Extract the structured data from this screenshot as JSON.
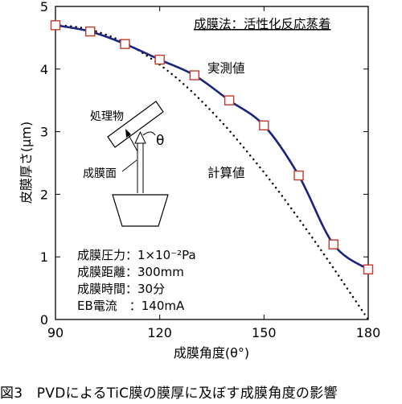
{
  "chart_data": {
    "type": "line",
    "xlabel": "成膜角度(θ°)",
    "ylabel": "皮膜厚さ(μm)",
    "xlim": [
      90,
      180
    ],
    "ylim": [
      0,
      5
    ],
    "xticks": [
      "90",
      "120",
      "150",
      "180"
    ],
    "yticks": [
      "0",
      "1",
      "2",
      "3",
      "4",
      "5"
    ],
    "grid": false,
    "series": [
      {
        "name": "実測値",
        "style": "solid line with square markers",
        "color": "#1a237e",
        "x": [
          90,
          100,
          110,
          120,
          130,
          140,
          150,
          160,
          170,
          180
        ],
        "y": [
          4.7,
          4.6,
          4.4,
          4.15,
          3.9,
          3.5,
          3.1,
          2.3,
          1.2,
          0.8
        ]
      },
      {
        "name": "計算値",
        "style": "dotted line",
        "color": "#000000",
        "x": [
          90,
          95,
          100,
          105,
          110,
          115,
          120,
          125,
          130,
          135,
          140,
          145,
          150,
          155,
          160,
          165,
          170,
          175,
          180
        ],
        "y": [
          4.7,
          4.68,
          4.63,
          4.54,
          4.42,
          4.26,
          4.07,
          3.85,
          3.6,
          3.32,
          3.02,
          2.69,
          2.35,
          1.99,
          1.61,
          1.22,
          0.82,
          0.41,
          0.0
        ]
      }
    ],
    "annotations": {
      "method": "成膜法：活性化反応蒸着",
      "measured_label": "実測値",
      "calc_label": "計算値",
      "diagram_object": "処理物",
      "diagram_surface": "成膜面",
      "diagram_theta": "θ",
      "conditions": [
        "成膜圧力：1×10⁻²Pa",
        "成膜距離：300mm",
        "成膜時間：30分",
        "EB電流　：140mA"
      ]
    }
  },
  "caption": "図3　PVDによるTiC膜の膜厚に及ぼす成膜角度の影響",
  "colors": {
    "line": "#1a237e",
    "marker": "#c0392b"
  }
}
